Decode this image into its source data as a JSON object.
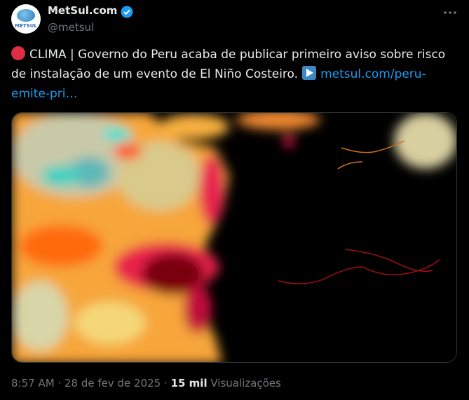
{
  "author": {
    "name": "MetSul.com",
    "handle": "@metsul",
    "logo_text": "METSUL"
  },
  "tweet": {
    "text": "CLIMA | Governo do Peru acaba de publicar primeiro aviso sobre risco de instalação de um evento de El Niño Costeiro.",
    "link": "metsul.com/peru-emite-pri…"
  },
  "footer": {
    "time": "8:57 AM",
    "separator": "·",
    "date": "28 de fev de 2025",
    "views": "15 mil",
    "views_label": "Visualizações"
  }
}
